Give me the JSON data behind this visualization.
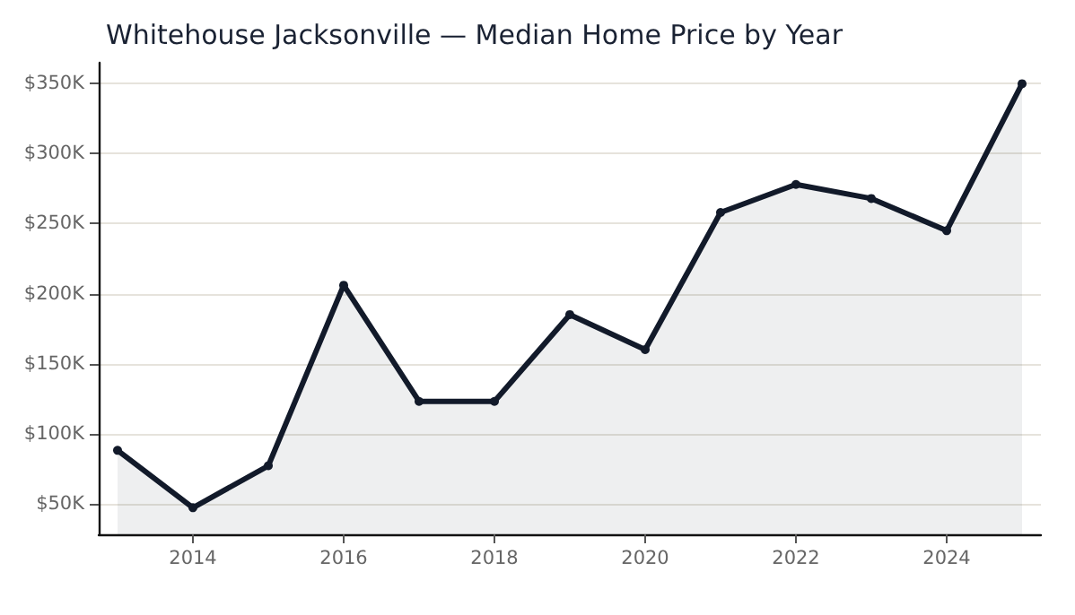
{
  "chart_data": {
    "type": "area",
    "title": "Whitehouse Jacksonville — Median Home Price by Year",
    "x": [
      2013,
      2014,
      2015,
      2016,
      2017,
      2018,
      2019,
      2020,
      2021,
      2022,
      2023,
      2024,
      2025
    ],
    "series": [
      {
        "color": "#121a2a",
        "values": [
          88000,
          47000,
          77000,
          206000,
          123000,
          123000,
          185000,
          160000,
          258000,
          278000,
          268000,
          245000,
          350000
        ]
      }
    ],
    "xlim": [
      2012.75,
      2025.25
    ],
    "xticks": [
      2014,
      2016,
      2018,
      2020,
      2022,
      2024
    ],
    "ylim": [
      28000,
      365000
    ],
    "yticks": [
      {
        "value": 50000,
        "label": "$50K"
      },
      {
        "value": 100000,
        "label": "$100K"
      },
      {
        "value": 150000,
        "label": "$150K"
      },
      {
        "value": 200000,
        "label": "$200K"
      },
      {
        "value": 250000,
        "label": "$250K"
      },
      {
        "value": 300000,
        "label": "$300K"
      },
      {
        "value": 350000,
        "label": "$350K"
      }
    ],
    "grid": "y",
    "marker": "circle",
    "line_style": "solid"
  }
}
